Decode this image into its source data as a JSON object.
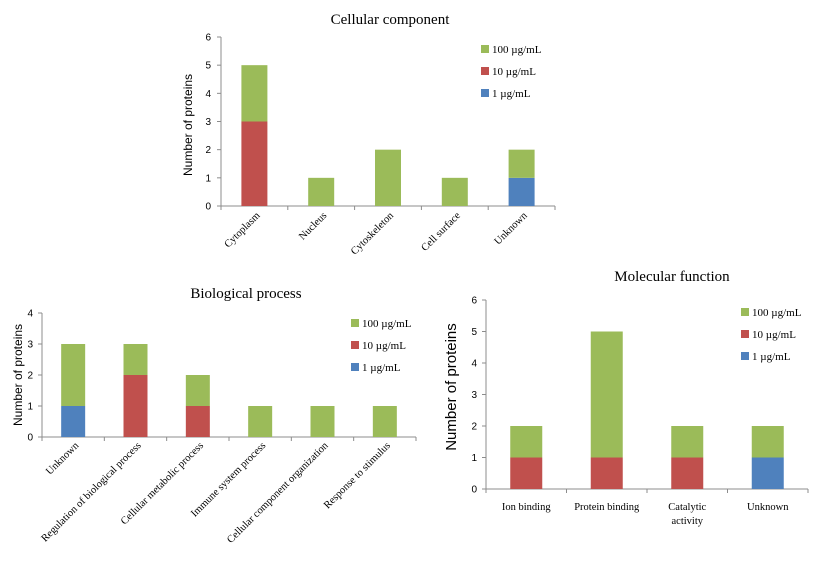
{
  "colors": {
    "one": "#4f81bd",
    "ten": "#c0504d",
    "hundred": "#9bbb59"
  },
  "legend": [
    "100 µg/mL",
    "10 µg/mL",
    "1 µg/mL"
  ],
  "chart_data": [
    {
      "type": "bar",
      "stacked": true,
      "title": "Cellular component",
      "ylabel": "Number of proteins",
      "xlabel": "",
      "ylim": [
        0,
        6
      ],
      "yticks": [
        0,
        1,
        2,
        3,
        4,
        5,
        6
      ],
      "categories": [
        "Cytoplasm",
        "Nucleus",
        "Cytoskeleton",
        "Cell surface",
        "Unknown"
      ],
      "series": [
        {
          "name": "1 µg/mL",
          "values": [
            0,
            0,
            0,
            0,
            1
          ]
        },
        {
          "name": "10 µg/mL",
          "values": [
            3,
            0,
            0,
            0,
            0
          ]
        },
        {
          "name": "100 µg/mL",
          "values": [
            2,
            1,
            2,
            1,
            1
          ]
        }
      ],
      "legend_position": "right"
    },
    {
      "type": "bar",
      "stacked": true,
      "title": "Biological process",
      "ylabel": "Number of proteins",
      "xlabel": "",
      "ylim": [
        0,
        4
      ],
      "yticks": [
        0,
        1,
        2,
        3,
        4
      ],
      "categories": [
        "Unknown",
        "Regulation of biological process",
        "Cellular metabolic process",
        "Immune system process",
        "Cellular component organization",
        "Response to stimulus"
      ],
      "series": [
        {
          "name": "1 µg/mL",
          "values": [
            1,
            0,
            0,
            0,
            0,
            0
          ]
        },
        {
          "name": "10 µg/mL",
          "values": [
            0,
            2,
            1,
            0,
            0,
            0
          ]
        },
        {
          "name": "100 µg/mL",
          "values": [
            2,
            1,
            1,
            1,
            1,
            1
          ]
        }
      ],
      "legend_position": "right"
    },
    {
      "type": "bar",
      "stacked": true,
      "title": "Molecular function",
      "ylabel": "Number of proteins",
      "xlabel": "",
      "ylim": [
        0,
        6
      ],
      "yticks": [
        0,
        1,
        2,
        3,
        4,
        5,
        6
      ],
      "categories": [
        "Ion binding",
        "Protein binding",
        "Catalytic activity",
        "Unknown"
      ],
      "series": [
        {
          "name": "1 µg/mL",
          "values": [
            0,
            0,
            0,
            1
          ]
        },
        {
          "name": "10 µg/mL",
          "values": [
            1,
            1,
            1,
            0
          ]
        },
        {
          "name": "100 µg/mL",
          "values": [
            1,
            4,
            1,
            1
          ]
        }
      ],
      "legend_position": "right"
    }
  ]
}
